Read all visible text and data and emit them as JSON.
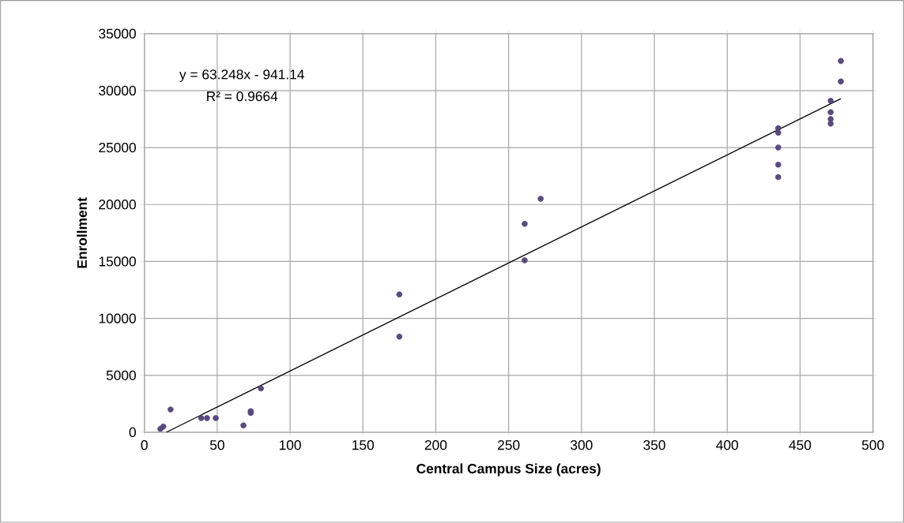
{
  "chart_data": {
    "type": "scatter",
    "xlabel": "Central Campus Size (acres)",
    "ylabel": "Enrollment",
    "annotations": [
      "y = 63.248x - 941.14",
      "R² = 0.9664"
    ],
    "series": [
      {
        "color": "#5b4a80",
        "x": [
          11,
          13,
          18,
          39,
          43,
          49,
          68,
          73,
          73,
          80,
          175,
          175,
          261,
          261,
          272,
          435,
          435,
          435,
          435,
          435,
          471,
          471,
          471,
          471,
          478,
          478
        ],
        "values": [
          300,
          500,
          2000,
          1250,
          1250,
          1250,
          600,
          1700,
          1850,
          3850,
          12100,
          8400,
          18300,
          15100,
          20500,
          26700,
          26300,
          25000,
          23500,
          22400,
          29100,
          28100,
          27500,
          27100,
          32600,
          30800
        ]
      },
      {
        "type": "line",
        "marker": "none",
        "color": "#000000",
        "x": [
          15,
          478
        ],
        "values": [
          0,
          29290
        ]
      }
    ],
    "xlim": [
      0,
      500
    ],
    "xticks": [
      0,
      50,
      100,
      150,
      200,
      250,
      300,
      350,
      400,
      450,
      500
    ],
    "ylim": [
      0,
      35000
    ],
    "yticks": [
      0,
      5000,
      10000,
      15000,
      20000,
      25000,
      30000,
      35000
    ],
    "grid": true,
    "marker": "circle"
  }
}
